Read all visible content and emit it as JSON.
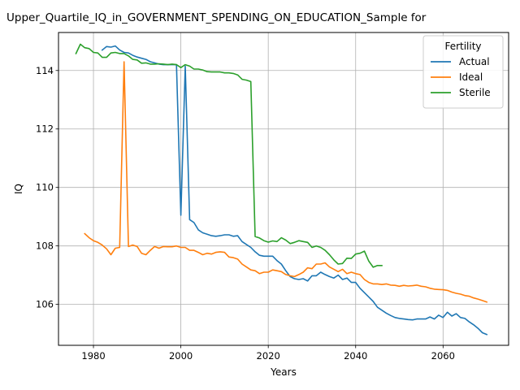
{
  "chart_data": {
    "type": "line",
    "title": "Upper_Quartile_IQ_in_GOVERNMENT_SPENDING_ON_EDUCATION_Sample for",
    "xlabel": "Years",
    "ylabel": "IQ",
    "xlim": [
      1972,
      2075
    ],
    "ylim": [
      104.6,
      115.3
    ],
    "xticks": [
      1980,
      2000,
      2020,
      2040,
      2060
    ],
    "yticks": [
      106,
      108,
      110,
      112,
      114
    ],
    "grid": true,
    "legend": {
      "title": "Fertility",
      "position": "top-right"
    },
    "series": [
      {
        "name": "Actual",
        "color": "#1f77b4",
        "x": [
          1982,
          1983,
          1984,
          1985,
          1986,
          1987,
          1988,
          1989,
          1990,
          1991,
          1992,
          1993,
          1994,
          1995,
          1996,
          1997,
          1998,
          1999,
          2000,
          2001,
          2002,
          2003,
          2004,
          2005,
          2006,
          2007,
          2008,
          2009,
          2010,
          2011,
          2012,
          2013,
          2014,
          2015,
          2016,
          2017,
          2018,
          2019,
          2020,
          2021,
          2022,
          2023,
          2024,
          2025,
          2026,
          2027,
          2028,
          2029,
          2030,
          2031,
          2032,
          2033,
          2034,
          2035,
          2036,
          2037,
          2038,
          2039,
          2040,
          2041,
          2042,
          2043,
          2044,
          2045,
          2046,
          2047,
          2048,
          2049,
          2050,
          2051,
          2052,
          2053,
          2054,
          2055,
          2056,
          2057,
          2058,
          2059,
          2060,
          2061,
          2062,
          2063,
          2064,
          2065,
          2066,
          2067,
          2068,
          2069,
          2070
        ],
        "y": [
          114.7,
          114.82,
          114.8,
          114.84,
          114.7,
          114.62,
          114.6,
          114.52,
          114.46,
          114.42,
          114.38,
          114.3,
          114.26,
          114.22,
          114.2,
          114.2,
          114.2,
          114.2,
          109.05,
          114.15,
          108.9,
          108.8,
          108.55,
          108.45,
          108.4,
          108.35,
          108.33,
          108.35,
          108.38,
          108.38,
          108.33,
          108.35,
          108.15,
          108.05,
          107.95,
          107.8,
          107.68,
          107.65,
          107.65,
          107.65,
          107.5,
          107.38,
          107.15,
          106.95,
          106.88,
          106.85,
          106.88,
          106.8,
          106.98,
          106.98,
          107.1,
          107.02,
          106.95,
          106.9,
          107.0,
          106.85,
          106.9,
          106.75,
          106.75,
          106.55,
          106.4,
          106.25,
          106.1,
          105.9,
          105.8,
          105.7,
          105.62,
          105.55,
          105.52,
          105.5,
          105.48,
          105.47,
          105.5,
          105.5,
          105.5,
          105.57,
          105.5,
          105.63,
          105.55,
          105.73,
          105.6,
          105.68,
          105.55,
          105.52,
          105.4,
          105.3,
          105.18,
          105.03,
          104.97
        ]
      },
      {
        "name": "Ideal",
        "color": "#ff7f0e",
        "x": [
          1978,
          1979,
          1980,
          1981,
          1982,
          1983,
          1984,
          1985,
          1986,
          1987,
          1988,
          1989,
          1990,
          1991,
          1992,
          1993,
          1994,
          1995,
          1996,
          1997,
          1998,
          1999,
          2000,
          2001,
          2002,
          2003,
          2004,
          2005,
          2006,
          2007,
          2008,
          2009,
          2010,
          2011,
          2012,
          2013,
          2014,
          2015,
          2016,
          2017,
          2018,
          2019,
          2020,
          2021,
          2022,
          2023,
          2024,
          2025,
          2026,
          2027,
          2028,
          2029,
          2030,
          2031,
          2032,
          2033,
          2034,
          2035,
          2036,
          2037,
          2038,
          2039,
          2040,
          2041,
          2042,
          2043,
          2044,
          2045,
          2046,
          2047,
          2048,
          2049,
          2050,
          2051,
          2052,
          2053,
          2054,
          2055,
          2056,
          2057,
          2058,
          2059,
          2060,
          2061,
          2062,
          2063,
          2064,
          2065,
          2066,
          2067,
          2068,
          2069,
          2070
        ],
        "y": [
          108.42,
          108.28,
          108.18,
          108.12,
          108.03,
          107.9,
          107.7,
          107.92,
          107.95,
          114.3,
          107.98,
          108.03,
          107.98,
          107.75,
          107.7,
          107.85,
          107.98,
          107.92,
          107.98,
          107.97,
          107.97,
          108.0,
          107.95,
          107.95,
          107.85,
          107.85,
          107.78,
          107.7,
          107.75,
          107.72,
          107.78,
          107.8,
          107.78,
          107.62,
          107.6,
          107.55,
          107.38,
          107.28,
          107.18,
          107.15,
          107.05,
          107.1,
          107.1,
          107.18,
          107.15,
          107.12,
          107.02,
          106.98,
          106.95,
          107.02,
          107.1,
          107.25,
          107.22,
          107.38,
          107.38,
          107.42,
          107.28,
          107.2,
          107.12,
          107.2,
          107.05,
          107.1,
          107.05,
          107.02,
          106.85,
          106.75,
          106.7,
          106.7,
          106.68,
          106.7,
          106.66,
          106.65,
          106.62,
          106.65,
          106.63,
          106.64,
          106.66,
          106.62,
          106.6,
          106.55,
          106.52,
          106.51,
          106.5,
          106.48,
          106.42,
          106.38,
          106.35,
          106.3,
          106.28,
          106.22,
          106.18,
          106.13,
          106.08
        ]
      },
      {
        "name": "Sterile",
        "color": "#2ca02c",
        "x": [
          1976,
          1977,
          1978,
          1979,
          1980,
          1981,
          1982,
          1983,
          1984,
          1985,
          1986,
          1987,
          1988,
          1989,
          1990,
          1991,
          1992,
          1993,
          1994,
          1995,
          1996,
          1997,
          1998,
          1999,
          2000,
          2001,
          2002,
          2003,
          2004,
          2005,
          2006,
          2007,
          2008,
          2009,
          2010,
          2011,
          2012,
          2013,
          2014,
          2015,
          2016,
          2017,
          2018,
          2019,
          2020,
          2021,
          2022,
          2023,
          2024,
          2025,
          2026,
          2027,
          2028,
          2029,
          2030,
          2031,
          2032,
          2033,
          2034,
          2035,
          2036,
          2037,
          2038,
          2039,
          2040,
          2041,
          2042,
          2043,
          2044,
          2045,
          2046
        ],
        "y": [
          114.58,
          114.9,
          114.78,
          114.75,
          114.62,
          114.6,
          114.45,
          114.45,
          114.6,
          114.62,
          114.58,
          114.58,
          114.5,
          114.38,
          114.36,
          114.25,
          114.26,
          114.22,
          114.22,
          114.23,
          114.22,
          114.2,
          114.22,
          114.2,
          114.1,
          114.2,
          114.15,
          114.05,
          114.05,
          114.02,
          113.96,
          113.95,
          113.95,
          113.95,
          113.92,
          113.92,
          113.9,
          113.85,
          113.7,
          113.67,
          113.62,
          108.32,
          108.27,
          108.18,
          108.13,
          108.17,
          108.15,
          108.28,
          108.2,
          108.08,
          108.12,
          108.18,
          108.15,
          108.12,
          107.95,
          108.0,
          107.95,
          107.85,
          107.7,
          107.52,
          107.38,
          107.4,
          107.58,
          107.57,
          107.72,
          107.75,
          107.82,
          107.48,
          107.27,
          107.33,
          107.33
        ]
      }
    ]
  }
}
